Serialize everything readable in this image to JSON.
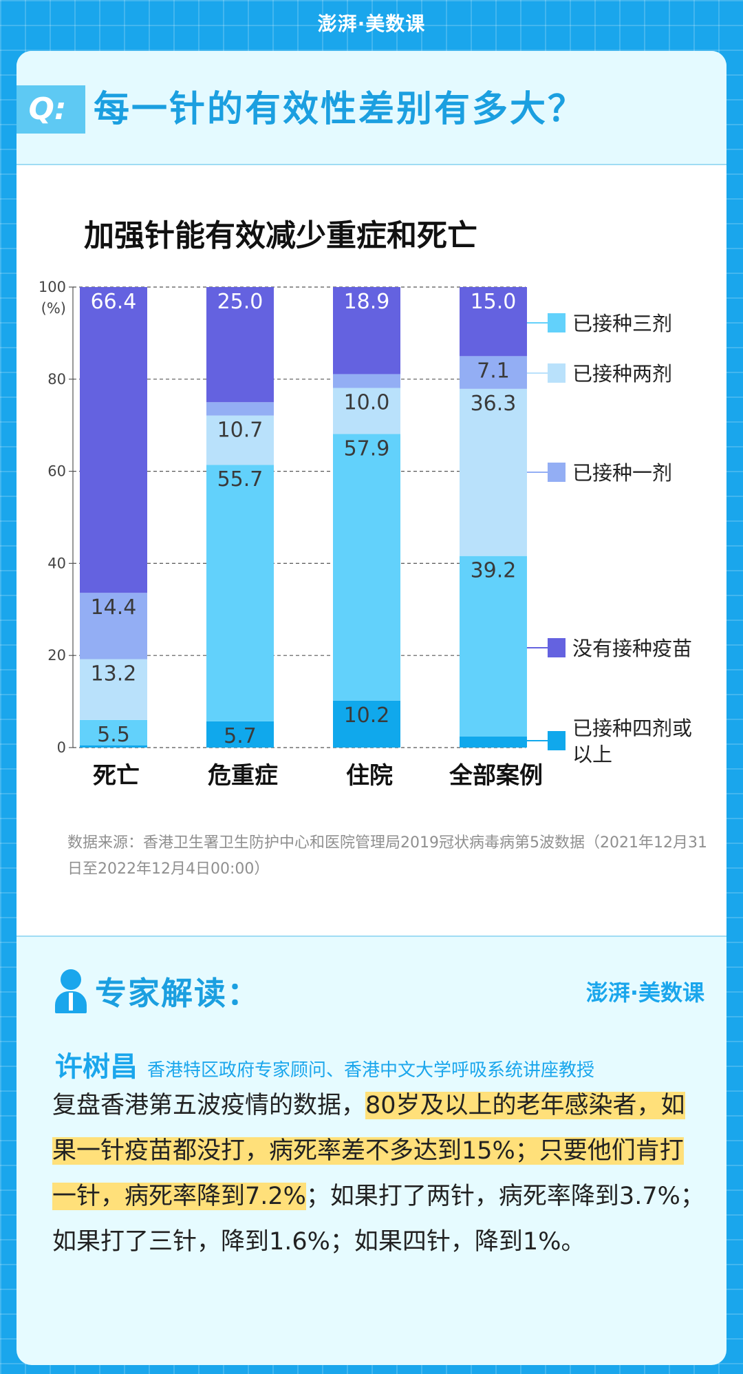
{
  "brand": "澎湃·美数课",
  "question": {
    "badge": "Q:",
    "title": "每一针的有效性差别有多大？"
  },
  "source_text": "数据来源：香港卫生署卫生防护中心和医院管理局2019冠状病毒病第5波数据（2021年12月31日至2022年12月4日00:00）",
  "expert": {
    "heading": "专家解读：",
    "name": "许树昌",
    "role": "香港特区政府专家顾问、香港中文大学呼吸系统讲座教授",
    "quote_parts": [
      {
        "text": "复盘香港第五波疫情的数据，",
        "highlight": false
      },
      {
        "text": "80岁及以上的老年感染者，如果一针疫苗都没打，病死率差不多达到15%；只要他们肯打一针，病死率降到7.2%",
        "highlight": true
      },
      {
        "text": "；如果打了两针，病死率降到3.7%；如果打了三针，降到1.6%；如果四针，降到1%。",
        "highlight": false
      }
    ]
  },
  "colors": {
    "none": "#6462e0",
    "one": "#93aef4",
    "two": "#b9e1fb",
    "three": "#62d1fb",
    "four": "#10a8ec"
  },
  "chart_data": {
    "type": "bar",
    "stacked": true,
    "title": "加强针能有效减少重症和死亡",
    "ylabel": "(%)",
    "ylim": [
      0,
      100
    ],
    "yticks": [
      0,
      20,
      40,
      60,
      80,
      100
    ],
    "grid": true,
    "legend_position": "right",
    "categories": [
      "死亡",
      "危重症",
      "住院",
      "全部案例"
    ],
    "series": [
      {
        "name": "已接种四剂或以上",
        "color": "#10a8ec",
        "values": [
          0.5,
          5.7,
          10.2,
          2.4
        ],
        "labels": [
          "",
          "5.7",
          "10.2",
          ""
        ]
      },
      {
        "name": "已接种三剂",
        "color": "#62d1fb",
        "values": [
          5.5,
          55.7,
          57.9,
          39.2
        ],
        "labels": [
          "5.5",
          "55.7",
          "57.9",
          "39.2"
        ]
      },
      {
        "name": "已接种两剂",
        "color": "#b9e1fb",
        "values": [
          13.2,
          10.7,
          10.0,
          36.3
        ],
        "labels": [
          "13.2",
          "10.7",
          "10.0",
          "36.3"
        ]
      },
      {
        "name": "已接种一剂",
        "color": "#93aef4",
        "values": [
          14.4,
          2.9,
          3.0,
          7.1
        ],
        "labels": [
          "14.4",
          "",
          "",
          "7.1"
        ]
      },
      {
        "name": "没有接种疫苗",
        "color": "#6462e0",
        "values": [
          66.4,
          25.0,
          18.9,
          15.0
        ],
        "labels": [
          "66.4",
          "25.0",
          "18.9",
          "15.0"
        ]
      }
    ]
  }
}
